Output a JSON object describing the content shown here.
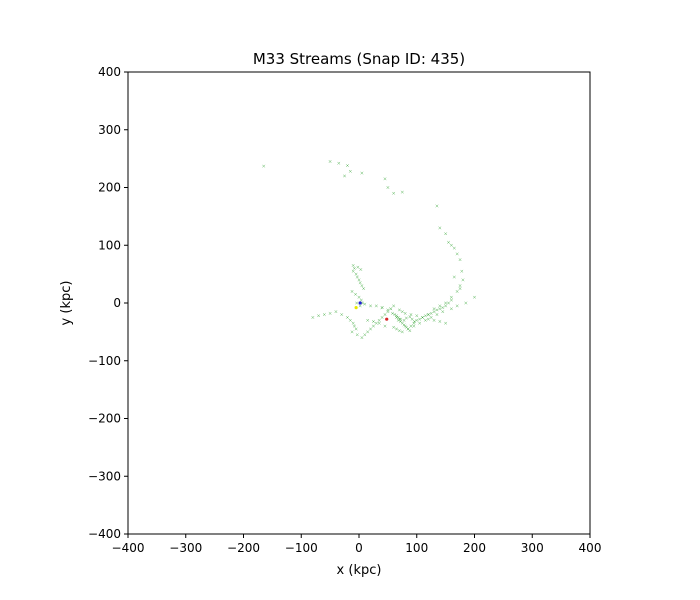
{
  "chart_data": {
    "type": "scatter",
    "title": "M33 Streams (Snap ID: 435)",
    "xlabel": "x (kpc)",
    "ylabel": "y (kpc)",
    "xlim": [
      -400,
      400
    ],
    "ylim": [
      -400,
      400
    ],
    "xticks": [
      -400,
      -300,
      -200,
      -100,
      0,
      100,
      200,
      300,
      400
    ],
    "yticks": [
      -400,
      -300,
      -200,
      -100,
      0,
      100,
      200,
      300,
      400
    ],
    "xtick_labels": [
      "−400",
      "−300",
      "−200",
      "−100",
      "0",
      "100",
      "200",
      "300",
      "400"
    ],
    "ytick_labels": [
      "−400",
      "−300",
      "−200",
      "−100",
      "0",
      "100",
      "200",
      "300",
      "400"
    ],
    "grid": false,
    "legend": "none",
    "colors": {
      "stream": "#2ca02c",
      "m33_center": "#d62728",
      "host_center": "#1f1fd6",
      "host_marker": "#e8e800"
    },
    "series": [
      {
        "color": "#2ca02c",
        "marker": "x",
        "x": [
          -165,
          -50,
          -35,
          -25,
          -20,
          -15,
          5,
          45,
          50,
          60,
          75,
          135,
          140,
          150,
          155,
          160,
          165,
          170,
          175,
          178,
          180,
          175,
          170,
          160,
          150,
          140,
          130,
          120,
          165,
          175,
          -10,
          -8,
          -5,
          -3,
          0,
          2,
          5,
          8,
          -12,
          -6,
          0,
          4,
          -4,
          2,
          6,
          -10,
          -2,
          3,
          -80,
          -70,
          -60,
          -50,
          -40,
          -30,
          -20,
          -15,
          -10,
          -8,
          -5,
          -12,
          -3,
          5,
          10,
          15,
          20,
          25,
          30,
          35,
          40,
          45,
          50,
          55,
          60,
          62,
          65,
          68,
          70,
          72,
          75,
          78,
          80,
          82,
          85,
          88,
          90,
          95,
          100,
          105,
          110,
          115,
          120,
          125,
          130,
          135,
          140,
          145,
          150,
          155,
          160,
          30,
          40,
          55,
          70,
          75,
          80,
          90,
          100,
          110,
          120,
          130,
          140,
          150,
          15,
          25,
          35,
          45,
          60,
          65,
          70,
          75,
          85,
          95,
          105,
          115,
          125,
          135,
          145,
          160,
          170,
          185,
          200,
          65,
          68,
          72,
          78,
          82,
          88,
          92,
          96,
          58,
          50,
          40,
          20,
          10
        ],
        "y": [
          237,
          245,
          242,
          220,
          238,
          228,
          225,
          215,
          200,
          190,
          192,
          168,
          130,
          120,
          105,
          100,
          95,
          85,
          75,
          55,
          40,
          30,
          20,
          10,
          0,
          -5,
          -10,
          -20,
          45,
          25,
          55,
          60,
          50,
          45,
          40,
          35,
          30,
          25,
          20,
          15,
          10,
          5,
          0,
          -5,
          0,
          65,
          62,
          58,
          -25,
          -22,
          -20,
          -18,
          -15,
          -20,
          -25,
          -30,
          -35,
          -40,
          -45,
          -50,
          -55,
          -60,
          -55,
          -50,
          -45,
          -40,
          -35,
          -30,
          -25,
          -20,
          -15,
          -10,
          -5,
          -20,
          -25,
          -30,
          -28,
          -32,
          -35,
          -38,
          -40,
          -42,
          -45,
          -48,
          -40,
          -35,
          -30,
          -28,
          -25,
          -22,
          -20,
          -18,
          -15,
          -12,
          -10,
          -8,
          -5,
          0,
          5,
          -5,
          -8,
          -10,
          -12,
          -15,
          -18,
          -20,
          -22,
          -25,
          -28,
          -30,
          -32,
          -35,
          -30,
          -32,
          -35,
          -40,
          -42,
          -45,
          -48,
          -50,
          -45,
          -40,
          -35,
          -30,
          -25,
          -20,
          -15,
          -10,
          -5,
          0,
          10,
          -22,
          -25,
          -28,
          -30,
          -26,
          -24,
          -28,
          -32,
          -18,
          -12,
          -8,
          -5,
          -2
        ]
      },
      {
        "color": "#d62728",
        "marker": "dot",
        "x": [
          48
        ],
        "y": [
          -28
        ]
      },
      {
        "color": "#1f1fd6",
        "marker": "dot",
        "x": [
          2
        ],
        "y": [
          0
        ]
      },
      {
        "color": "#e8e800",
        "marker": "dot",
        "x": [
          -5
        ],
        "y": [
          -8
        ]
      }
    ]
  }
}
